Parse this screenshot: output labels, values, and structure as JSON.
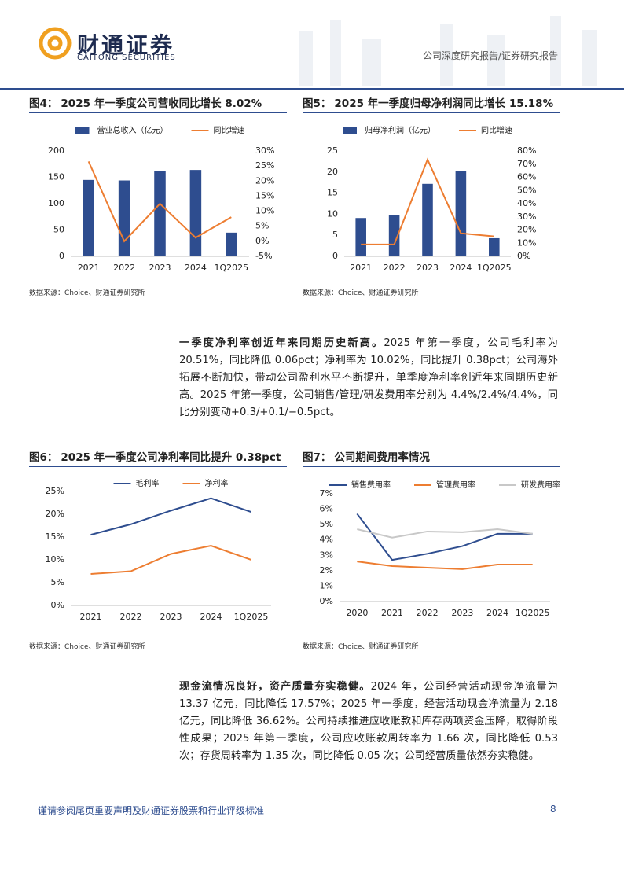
{
  "header": {
    "logo_cn": "财通证券",
    "logo_en": "CAITONG SECURITIES",
    "report_type": "公司深度研究报告/证券研究报告"
  },
  "chart_data": [
    {
      "type": "combo",
      "figure": "图4：",
      "title": "2025 年一季度公司营收同比增长 8.02%",
      "source": "数据来源：Choice、财通证券研究所",
      "categories": [
        "2021",
        "2022",
        "2023",
        "2024",
        "1Q2025"
      ],
      "series": [
        {
          "name": "营业总收入（亿元）",
          "color": "#2e4d8f",
          "kind": "bar",
          "values": [
            145,
            144,
            162,
            164,
            45
          ]
        },
        {
          "name": "同比增速",
          "color": "#ed7d31",
          "kind": "line",
          "axis": "y2",
          "values": [
            26.5,
            0,
            12.5,
            1.2,
            8.02
          ]
        }
      ],
      "ylim": [
        0,
        200
      ],
      "yticks": [
        0,
        50,
        100,
        150,
        200
      ],
      "y2lim": [
        -5,
        30
      ],
      "y2ticks": [
        {
          "value": -5,
          "label": "-5%"
        },
        {
          "value": 0,
          "label": "0%"
        },
        {
          "value": 5,
          "label": "5%"
        },
        {
          "value": 10,
          "label": "10%"
        },
        {
          "value": 15,
          "label": "15%"
        },
        {
          "value": 20,
          "label": "20%"
        },
        {
          "value": 25,
          "label": "25%"
        },
        {
          "value": 30,
          "label": "30%"
        }
      ],
      "grid": false
    },
    {
      "type": "combo",
      "figure": "图5：",
      "title": "2025 年一季度归母净利润同比增长 15.18%",
      "source": "数据来源：Choice、财通证券研究所",
      "categories": [
        "2021",
        "2022",
        "2023",
        "2024",
        "1Q2025"
      ],
      "series": [
        {
          "name": "归母净利润（亿元）",
          "color": "#2e4d8f",
          "kind": "bar",
          "values": [
            9.1,
            9.8,
            17.2,
            20.2,
            4.3
          ]
        },
        {
          "name": "同比增速",
          "color": "#ed7d31",
          "kind": "line",
          "axis": "y2",
          "values": [
            9,
            9,
            73.5,
            17.5,
            15.18
          ]
        }
      ],
      "ylim": [
        0,
        25
      ],
      "yticks": [
        0,
        5,
        10,
        15,
        20,
        25
      ],
      "y2lim": [
        0,
        80
      ],
      "y2ticks": [
        {
          "value": 0,
          "label": "0%"
        },
        {
          "value": 10,
          "label": "10%"
        },
        {
          "value": 20,
          "label": "20%"
        },
        {
          "value": 30,
          "label": "30%"
        },
        {
          "value": 40,
          "label": "40%"
        },
        {
          "value": 50,
          "label": "50%"
        },
        {
          "value": 60,
          "label": "60%"
        },
        {
          "value": 70,
          "label": "70%"
        },
        {
          "value": 80,
          "label": "80%"
        }
      ],
      "grid": false
    },
    {
      "type": "line",
      "figure": "图6：",
      "title": "2025 年一季度公司净利率同比提升 0.38pct",
      "source": "数据来源：Choice、财通证券研究所",
      "categories": [
        "2021",
        "2022",
        "2023",
        "2024",
        "1Q2025"
      ],
      "series": [
        {
          "name": "毛利率",
          "color": "#2e4d8f",
          "values": [
            15.5,
            17.8,
            20.8,
            23.5,
            20.51
          ]
        },
        {
          "name": "净利率",
          "color": "#ed7d31",
          "values": [
            6.9,
            7.5,
            11.3,
            13.1,
            10.02
          ]
        }
      ],
      "ylim": [
        0,
        25
      ],
      "yticks": [
        {
          "value": 0,
          "label": "0%"
        },
        {
          "value": 5,
          "label": "5%"
        },
        {
          "value": 10,
          "label": "10%"
        },
        {
          "value": 15,
          "label": "15%"
        },
        {
          "value": 20,
          "label": "20%"
        },
        {
          "value": 25,
          "label": "25%"
        }
      ],
      "grid": false
    },
    {
      "type": "line",
      "figure": "图7：",
      "title": "公司期间费用率情况",
      "source": "数据来源：Choice、财通证券研究所",
      "categories": [
        "2020",
        "2021",
        "2022",
        "2023",
        "2024",
        "1Q2025"
      ],
      "series": [
        {
          "name": "销售费用率",
          "color": "#2e4d8f",
          "values": [
            5.7,
            2.7,
            3.1,
            3.6,
            4.4,
            4.4
          ]
        },
        {
          "name": "管理费用率",
          "color": "#ed7d31",
          "values": [
            2.6,
            2.3,
            2.2,
            2.1,
            2.4,
            2.4
          ]
        },
        {
          "name": "研发费用率",
          "color": "#c8c8c8",
          "values": [
            4.7,
            4.15,
            4.55,
            4.5,
            4.7,
            4.4
          ]
        }
      ],
      "ylim": [
        0,
        7
      ],
      "yticks": [
        {
          "value": 0,
          "label": "0%"
        },
        {
          "value": 1,
          "label": "1%"
        },
        {
          "value": 2,
          "label": "2%"
        },
        {
          "value": 3,
          "label": "3%"
        },
        {
          "value": 4,
          "label": "4%"
        },
        {
          "value": 5,
          "label": "5%"
        },
        {
          "value": 6,
          "label": "6%"
        },
        {
          "value": 7,
          "label": "7%"
        }
      ],
      "grid": false
    }
  ],
  "paragraphs": [
    {
      "lead": "一季度净利率创近年来同期历史新高。",
      "text": "2025 年第一季度，公司毛利率为 20.51%，同比降低 0.06pct；净利率为 10.02%，同比提升 0.38pct；公司海外拓展不断加快，带动公司盈利水平不断提升，单季度净利率创近年来同期历史新高。2025 年第一季度，公司销售/管理/研发费用率分别为 4.4%/2.4%/4.4%，同比分别变动+0.3/+0.1/−0.5pct。"
    },
    {
      "lead": "现金流情况良好，资产质量夯实稳健。",
      "text": "2024 年，公司经营活动现金净流量为 13.37 亿元，同比降低 17.57%；2025 年一季度，经营活动现金净流量为 2.18 亿元，同比降低 36.62%。公司持续推进应收账款和库存两项资金压降，取得阶段性成果；2025 年第一季度，公司应收账款周转率为 1.66 次，同比降低 0.53 次；存货周转率为 1.35 次，同比降低 0.05 次；公司经营质量依然夯实稳健。"
    }
  ],
  "footer": {
    "disclaimer": "谨请参阅尾页重要声明及财通证券股票和行业评级标准",
    "page": "8"
  }
}
